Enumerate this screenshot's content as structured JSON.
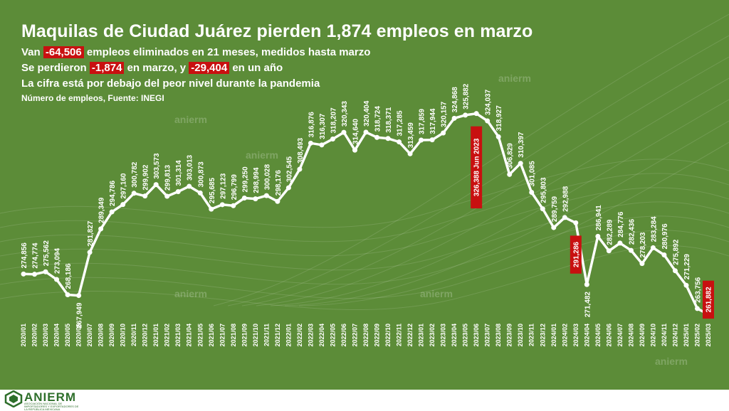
{
  "header": {
    "title": "Maquilas de Ciudad Juárez pierden 1,874 empleos en marzo",
    "line1_pre": "Van",
    "line1_hl": "-64,506",
    "line1_post": "empleos eliminados en 21 meses, medidos hasta marzo",
    "line2_pre": "Se perdieron",
    "line2_hl1": "-1,874",
    "line2_mid": "en marzo, y",
    "line2_hl2": "-29,404",
    "line2_post": "en un año",
    "line3": "La cifra está por debajo del peor nivel durante la pandemia",
    "line4": "Número de empleos, Fuente: INEGI"
  },
  "watermark": "anierm",
  "logo": {
    "name": "ANIERM",
    "subtitle": "ASOCIACIÓN NACIONAL DE IMPORTADORES Y EXPORTADORES DE LA REPÚBLICA MEXICANA"
  },
  "colors": {
    "background": "#5c8c38",
    "line": "#ffffff",
    "highlight": "#c81010"
  },
  "chart_data": {
    "type": "line",
    "title": "Maquilas de Ciudad Juárez pierden 1,874 empleos en marzo",
    "xlabel": "",
    "ylabel": "",
    "ylim": [
      255000,
      335000
    ],
    "grid": false,
    "legend": "none",
    "categories": [
      "2020/01",
      "2020/02",
      "2020/03",
      "2020/04",
      "2020/05",
      "2020/06",
      "2020/07",
      "2020/08",
      "2020/09",
      "2020/10",
      "2020/11",
      "2020/12",
      "2021/01",
      "2021/02",
      "2021/03",
      "2021/04",
      "2021/05",
      "2021/06",
      "2021/07",
      "2021/08",
      "2021/09",
      "2021/10",
      "2021/11",
      "2021/12",
      "2022/01",
      "2022/02",
      "2022/03",
      "2022/04",
      "2022/05",
      "2022/06",
      "2022/07",
      "2022/08",
      "2022/09",
      "2022/10",
      "2022/11",
      "2022/12",
      "2023/01",
      "2023/02",
      "2023/03",
      "2023/04",
      "2023/05",
      "2023/06",
      "2023/07",
      "2023/08",
      "2023/09",
      "2023/10",
      "2023/11",
      "2023/12",
      "2024/01",
      "2024/02",
      "2024/03",
      "2024/04",
      "2024/05",
      "2024/06",
      "2024/07",
      "2024/08",
      "2024/09",
      "2024/10",
      "2024/11",
      "2024/12",
      "2025/01",
      "2025/02",
      "2025/03"
    ],
    "values": [
      274856,
      274774,
      275562,
      273094,
      268186,
      267949,
      281827,
      289349,
      294786,
      297160,
      300782,
      299902,
      303573,
      299813,
      301314,
      303013,
      300873,
      295685,
      297123,
      296799,
      299250,
      298994,
      300028,
      298176,
      302545,
      308493,
      316876,
      316307,
      318207,
      320343,
      314640,
      320404,
      318724,
      318371,
      317285,
      313459,
      317859,
      317944,
      320157,
      324868,
      325882,
      326388,
      324037,
      318927,
      306829,
      310397,
      301085,
      295803,
      289759,
      292988,
      291286,
      271482,
      286941,
      282289,
      284776,
      282436,
      278203,
      283284,
      280976,
      275892,
      271229,
      263756,
      261882
    ],
    "labels": [
      "274,856",
      "274,774",
      "275,562",
      "273,094",
      "268,186",
      "267,949",
      "281,827",
      "289,349",
      "294,786",
      "297,160",
      "300,782",
      "299,902",
      "303,573",
      "299,813",
      "301,314",
      "303,013",
      "300,873",
      "295,685",
      "297,123",
      "296,799",
      "299,250",
      "298,994",
      "300,028",
      "298,176",
      "302,545",
      "308,493",
      "316,876",
      "316,307",
      "318,207",
      "320,343",
      "314,640",
      "320,404",
      "318,724",
      "318,371",
      "317,285",
      "313,459",
      "317,859",
      "317,944",
      "320,157",
      "324,868",
      "325,882",
      "326,388",
      "324,037",
      "318,927",
      "306,829",
      "310,397",
      "301,085",
      "295,803",
      "289,759",
      "292,988",
      "291,286",
      "271,482",
      "286,941",
      "282,289",
      "284,776",
      "282,436",
      "278,203",
      "283,284",
      "280,976",
      "275,892",
      "271,229",
      "263,756",
      "261,882"
    ],
    "annotations": [
      {
        "index": 41,
        "text": "326,388  Jun 2023"
      },
      {
        "index": 50,
        "text": "291,286"
      },
      {
        "index": 62,
        "text": "261,882"
      }
    ]
  }
}
